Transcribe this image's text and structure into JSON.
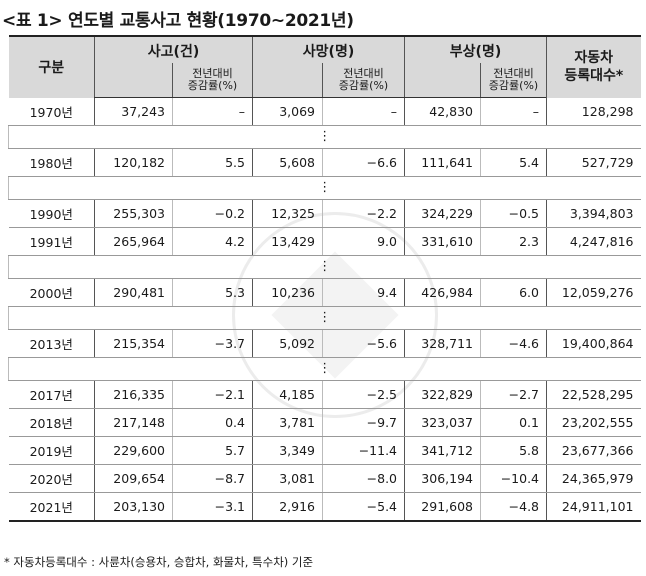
{
  "title": "<표 1> 연도별 교통사고 현황(1970~2021년)",
  "headers": {
    "category": "구분",
    "accidents": "사고(건)",
    "deaths": "사망(명)",
    "injuries": "부상(명)",
    "vehicles_line1": "자동차",
    "vehicles_line2": "등록대수*",
    "rate_line1": "전년대비",
    "rate_line2": "증감률(%)"
  },
  "ellipsis": "⋮",
  "rows": [
    {
      "year": "1970년",
      "accidents": "37,243",
      "acc_rate": "–",
      "deaths": "3,069",
      "death_rate": "–",
      "injuries": "42,830",
      "inj_rate": "–",
      "vehicles": "128,298"
    },
    {
      "year": "1980년",
      "accidents": "120,182",
      "acc_rate": "5.5",
      "deaths": "5,608",
      "death_rate": "−6.6",
      "injuries": "111,641",
      "inj_rate": "5.4",
      "vehicles": "527,729"
    },
    {
      "year": "1990년",
      "accidents": "255,303",
      "acc_rate": "−0.2",
      "deaths": "12,325",
      "death_rate": "−2.2",
      "injuries": "324,229",
      "inj_rate": "−0.5",
      "vehicles": "3,394,803"
    },
    {
      "year": "1991년",
      "accidents": "265,964",
      "acc_rate": "4.2",
      "deaths": "13,429",
      "death_rate": "9.0",
      "injuries": "331,610",
      "inj_rate": "2.3",
      "vehicles": "4,247,816"
    },
    {
      "year": "2000년",
      "accidents": "290,481",
      "acc_rate": "5.3",
      "deaths": "10,236",
      "death_rate": "9.4",
      "injuries": "426,984",
      "inj_rate": "6.0",
      "vehicles": "12,059,276"
    },
    {
      "year": "2013년",
      "accidents": "215,354",
      "acc_rate": "−3.7",
      "deaths": "5,092",
      "death_rate": "−5.6",
      "injuries": "328,711",
      "inj_rate": "−4.6",
      "vehicles": "19,400,864"
    },
    {
      "year": "2017년",
      "accidents": "216,335",
      "acc_rate": "−2.1",
      "deaths": "4,185",
      "death_rate": "−2.5",
      "injuries": "322,829",
      "inj_rate": "−2.7",
      "vehicles": "22,528,295"
    },
    {
      "year": "2018년",
      "accidents": "217,148",
      "acc_rate": "0.4",
      "deaths": "3,781",
      "death_rate": "−9.7",
      "injuries": "323,037",
      "inj_rate": "0.1",
      "vehicles": "23,202,555"
    },
    {
      "year": "2019년",
      "accidents": "229,600",
      "acc_rate": "5.7",
      "deaths": "3,349",
      "death_rate": "−11.4",
      "injuries": "341,712",
      "inj_rate": "5.8",
      "vehicles": "23,677,366"
    },
    {
      "year": "2020년",
      "accidents": "209,654",
      "acc_rate": "−8.7",
      "deaths": "3,081",
      "death_rate": "−8.0",
      "injuries": "306,194",
      "inj_rate": "−10.4",
      "vehicles": "24,365,979"
    },
    {
      "year": "2021년",
      "accidents": "203,130",
      "acc_rate": "−3.1",
      "deaths": "2,916",
      "death_rate": "−5.4",
      "injuries": "291,608",
      "inj_rate": "−4.8",
      "vehicles": "24,911,101"
    }
  ],
  "footnote": "* 자동차등록대수 : 사륜차(승용차, 승합차, 화물차, 특수차) 기준"
}
